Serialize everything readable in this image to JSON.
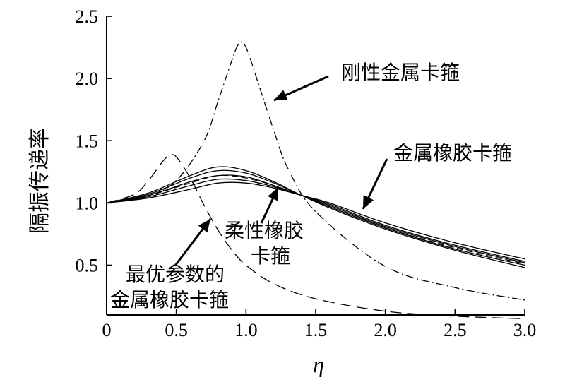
{
  "chart_data": {
    "type": "line",
    "title": "",
    "xlabel": "η",
    "ylabel": "隔振传递率",
    "xlim": [
      0,
      3.0
    ],
    "ylim": [
      0.1,
      2.5
    ],
    "x_ticks": [
      "0",
      "0.5",
      "1.0",
      "1.5",
      "2.0",
      "2.5",
      "3.0"
    ],
    "y_ticks": [
      "0.5",
      "1.0",
      "1.5",
      "2.0",
      "2.5"
    ],
    "grid": false,
    "annotations": {
      "rigid": "刚性金属卡箍",
      "metal_rubber": "金属橡胶卡箍",
      "flexible_line1": "柔性橡胶",
      "flexible_line2": "卡箍",
      "optimal_line1": "最优参数的",
      "optimal_line2": "金属橡胶卡箍"
    },
    "series": [
      {
        "style": "dashdot",
        "x": [
          0,
          0.3,
          0.5,
          0.7,
          0.8,
          0.9,
          0.95,
          1.0,
          1.1,
          1.2,
          1.3,
          1.5,
          2.0,
          2.5,
          3.0
        ],
        "y": [
          1.0,
          1.06,
          1.18,
          1.5,
          1.82,
          2.15,
          2.28,
          2.25,
          1.92,
          1.58,
          1.28,
          0.93,
          0.49,
          0.32,
          0.22
        ]
      },
      {
        "style": "longdash",
        "x": [
          0,
          0.2,
          0.3,
          0.4,
          0.45,
          0.5,
          0.6,
          0.7,
          0.8,
          0.9,
          1.0,
          1.2,
          1.5,
          2.0,
          2.5,
          3.0
        ],
        "y": [
          1.0,
          1.07,
          1.18,
          1.33,
          1.38,
          1.37,
          1.2,
          0.98,
          0.78,
          0.62,
          0.5,
          0.35,
          0.23,
          0.13,
          0.09,
          0.07
        ]
      },
      {
        "style": "dashed",
        "x": [
          0,
          0.3,
          0.6,
          0.8,
          1.0,
          1.2,
          1.4,
          1.6,
          2.0,
          2.5,
          3.0
        ],
        "y": [
          1.0,
          1.06,
          1.16,
          1.22,
          1.2,
          1.14,
          1.06,
          0.97,
          0.8,
          0.64,
          0.51
        ]
      },
      {
        "style": "solid",
        "x": [
          0,
          0.3,
          0.6,
          0.8,
          1.0,
          1.2,
          1.4,
          1.6,
          2.0,
          2.5,
          3.0
        ],
        "y": [
          1.0,
          1.08,
          1.22,
          1.29,
          1.26,
          1.17,
          1.06,
          0.96,
          0.79,
          0.62,
          0.48
        ]
      },
      {
        "style": "solid",
        "x": [
          0,
          0.3,
          0.6,
          0.8,
          1.0,
          1.2,
          1.4,
          1.6,
          2.0,
          2.5,
          3.0
        ],
        "y": [
          1.0,
          1.07,
          1.2,
          1.26,
          1.24,
          1.16,
          1.06,
          0.97,
          0.8,
          0.63,
          0.5
        ]
      },
      {
        "style": "solid",
        "x": [
          0,
          0.3,
          0.6,
          0.8,
          1.0,
          1.2,
          1.4,
          1.6,
          2.0,
          2.5,
          3.0
        ],
        "y": [
          1.0,
          1.06,
          1.17,
          1.22,
          1.21,
          1.14,
          1.06,
          0.98,
          0.81,
          0.65,
          0.52
        ]
      },
      {
        "style": "solid",
        "x": [
          0,
          0.3,
          0.6,
          0.8,
          1.0,
          1.2,
          1.4,
          1.6,
          2.0,
          2.5,
          3.0
        ],
        "y": [
          1.0,
          1.05,
          1.14,
          1.19,
          1.18,
          1.13,
          1.06,
          0.99,
          0.82,
          0.66,
          0.53
        ]
      },
      {
        "style": "solid",
        "x": [
          0,
          0.3,
          0.6,
          0.8,
          1.0,
          1.2,
          1.4,
          1.6,
          2.0,
          2.5,
          3.0
        ],
        "y": [
          1.0,
          1.04,
          1.11,
          1.16,
          1.16,
          1.12,
          1.06,
          1.0,
          0.84,
          0.68,
          0.55
        ]
      }
    ]
  }
}
